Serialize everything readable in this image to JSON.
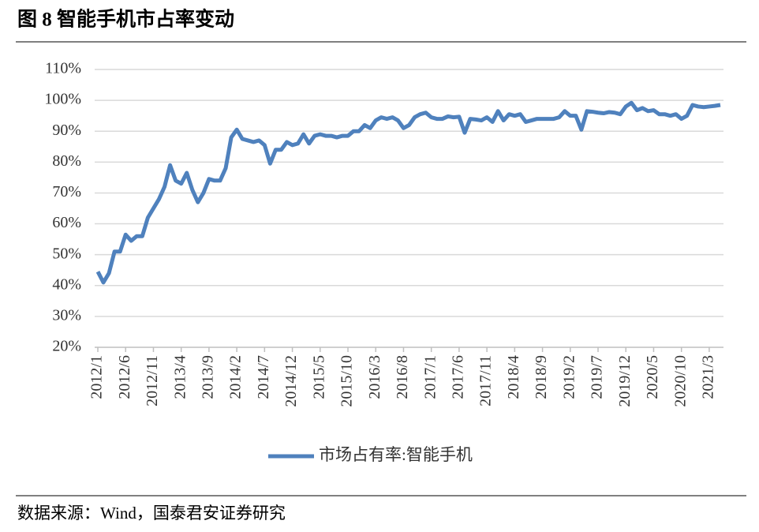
{
  "chart_data": {
    "type": "line",
    "title": "图 8 智能手机市占率变动",
    "source": "数据来源：Wind，国泰君安证券研究",
    "categories": [
      "2012/1",
      null,
      null,
      null,
      null,
      "2012/6",
      null,
      null,
      null,
      null,
      "2012/11",
      null,
      null,
      null,
      null,
      "2013/4",
      null,
      null,
      null,
      null,
      "2013/9",
      null,
      null,
      null,
      null,
      "2014/2",
      null,
      null,
      null,
      null,
      "2014/7",
      null,
      null,
      null,
      null,
      "2014/12",
      null,
      null,
      null,
      null,
      "2015/5",
      null,
      null,
      null,
      null,
      "2015/10",
      null,
      null,
      null,
      null,
      "2016/3",
      null,
      null,
      null,
      null,
      "2016/8",
      null,
      null,
      null,
      null,
      "2017/1",
      null,
      null,
      null,
      null,
      "2017/6",
      null,
      null,
      null,
      null,
      "2017/11",
      null,
      null,
      null,
      null,
      "2018/4",
      null,
      null,
      null,
      null,
      "2018/9",
      null,
      null,
      null,
      null,
      "2019/2",
      null,
      null,
      null,
      null,
      "2019/7",
      null,
      null,
      null,
      null,
      "2019/12",
      null,
      null,
      null,
      null,
      "2020/5",
      null,
      null,
      null,
      null,
      "2020/10",
      null,
      null,
      null,
      null,
      "2021/3",
      null,
      null
    ],
    "series": [
      {
        "name": "市场占有率:智能手机",
        "color": "#4f81bd",
        "values": [
          44.5,
          41,
          44,
          51,
          51,
          56.5,
          54.5,
          56,
          56,
          62,
          65,
          68,
          72,
          79,
          74,
          73,
          76.5,
          71,
          67,
          70,
          74.5,
          74,
          74,
          78,
          88,
          90.5,
          87.5,
          87,
          86.5,
          87,
          85.5,
          79.5,
          84,
          84,
          86.5,
          85.5,
          86,
          89,
          86,
          88.5,
          89,
          88.5,
          88.5,
          88,
          88.5,
          88.5,
          90,
          90,
          92,
          91,
          93.5,
          94.5,
          94,
          94.5,
          93.5,
          91,
          92,
          94.5,
          95.5,
          96,
          94.5,
          94,
          94,
          94.8,
          94.5,
          94.7,
          89.5,
          94,
          93.8,
          93.5,
          94.5,
          93,
          96.5,
          93.5,
          95.5,
          95,
          95.5,
          93,
          93.5,
          94,
          94,
          94,
          94,
          94.5,
          96.5,
          95,
          95,
          90.5,
          96.5,
          96.3,
          96,
          95.8,
          96.2,
          96,
          95.5,
          98,
          99.2,
          96.8,
          97.5,
          96.5,
          96.8,
          95.5,
          95.5,
          95,
          95.5,
          94,
          95,
          98.5,
          98,
          97.8,
          98,
          98.2,
          98.5
        ]
      }
    ],
    "ylim": [
      20,
      110
    ],
    "yticks": [
      {
        "value": 20,
        "label": "20%"
      },
      {
        "value": 30,
        "label": "30%"
      },
      {
        "value": 40,
        "label": "40%"
      },
      {
        "value": 50,
        "label": "50%"
      },
      {
        "value": 60,
        "label": "60%"
      },
      {
        "value": 70,
        "label": "70%"
      },
      {
        "value": 80,
        "label": "80%"
      },
      {
        "value": 90,
        "label": "90%"
      },
      {
        "value": 100,
        "label": "100%"
      },
      {
        "value": 110,
        "label": "110%"
      }
    ],
    "grid": true
  }
}
